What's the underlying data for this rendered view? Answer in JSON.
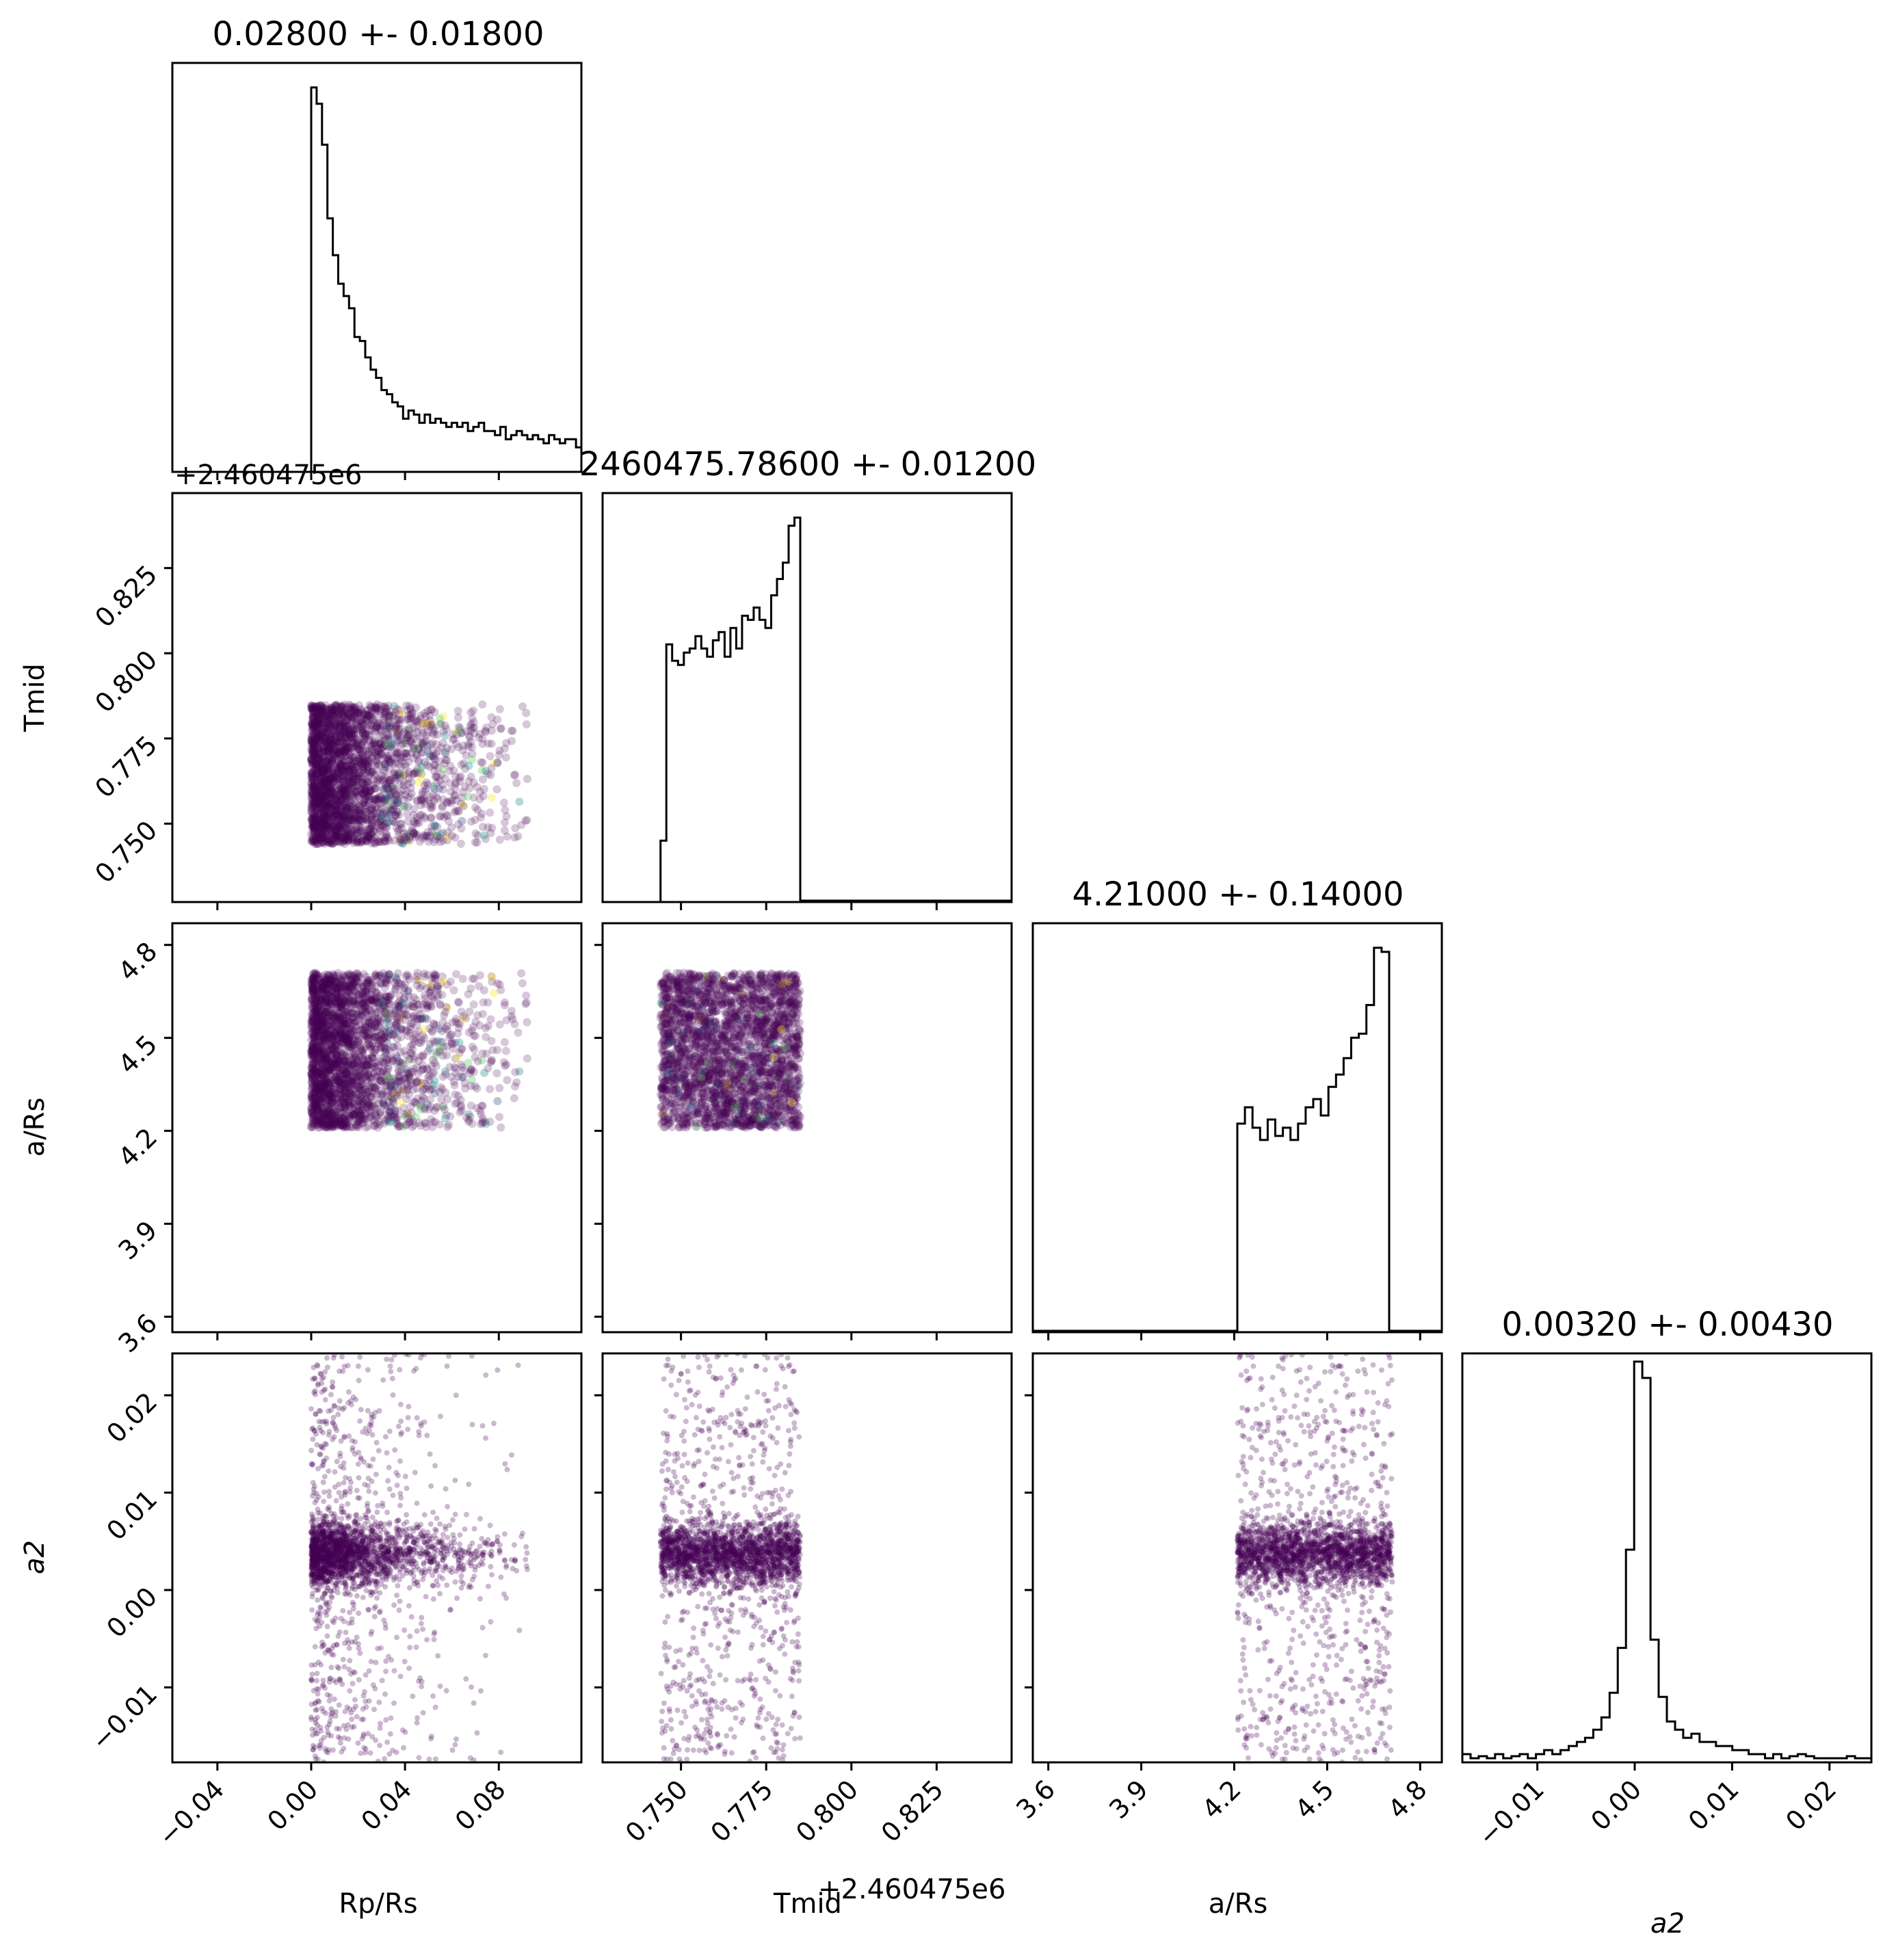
{
  "colors": {
    "background": "#ffffff",
    "frame": "#000000",
    "hist": "#000000",
    "points": "#440154",
    "points_extra": [
      "#3b528b",
      "#21918c",
      "#5ec962",
      "#fde725"
    ]
  },
  "chart_data": {
    "type": "corner",
    "parameters": [
      "Rp/Rs",
      "Tmid",
      "a/Rs",
      "a2"
    ],
    "titles": {
      "rp": "0.02800 +- 0.01800",
      "tmid": "2460475.78600 +- 0.01200",
      "ars": "4.21000 +- 0.14000",
      "a2": "0.00320 +- 0.00430"
    },
    "axis_labels": {
      "x_rp": "Rp/Rs",
      "x_tmid": "Tmid",
      "x_ars": "a/Rs",
      "x_a2": "a2",
      "y_tmid": "Tmid",
      "y_ars": "a/Rs",
      "y_a2": "a2"
    },
    "offsets": {
      "rp_tmid_panel": "+2.460475e6",
      "tmid_x": "+2.460475e6"
    },
    "ticks": {
      "rp": [
        "−0.04",
        "0.00",
        "0.04",
        "0.08"
      ],
      "tmid": [
        "0.750",
        "0.775",
        "0.800",
        "0.825"
      ],
      "ars": [
        "3.6",
        "3.9",
        "4.2",
        "4.5",
        "4.8"
      ],
      "a2": [
        "−0.01",
        "0.00",
        "0.01",
        "0.02"
      ]
    },
    "ranges": {
      "rp": [
        -0.0592,
        0.1152
      ],
      "tmid": [
        0.727,
        0.847
      ],
      "ars": [
        3.55,
        4.87
      ],
      "a2": [
        -0.0177,
        0.0243
      ]
    },
    "hist_rp": [
      0.94,
      0.9,
      0.8,
      0.62,
      0.53,
      0.46,
      0.43,
      0.4,
      0.33,
      0.32,
      0.28,
      0.25,
      0.23,
      0.2,
      0.19,
      0.17,
      0.16,
      0.13,
      0.15,
      0.14,
      0.12,
      0.14,
      0.12,
      0.13,
      0.12,
      0.11,
      0.12,
      0.11,
      0.12,
      0.1,
      0.11,
      0.12,
      0.1,
      0.1,
      0.09,
      0.11,
      0.08,
      0.09,
      0.1,
      0.09,
      0.08,
      0.09,
      0.08,
      0.07,
      0.09,
      0.08,
      0.07,
      0.08,
      0.08,
      0.06
    ],
    "hist_rp_start": 0.0,
    "hist_rp_end": 0.1152,
    "hist_tmid": [
      0.15,
      0.63,
      0.59,
      0.58,
      0.61,
      0.62,
      0.65,
      0.62,
      0.6,
      0.64,
      0.66,
      0.6,
      0.67,
      0.62,
      0.7,
      0.69,
      0.72,
      0.69,
      0.67,
      0.75,
      0.79,
      0.83,
      0.92,
      0.94
    ],
    "hist_tmid_start": 0.744,
    "hist_tmid_end": 0.785,
    "hist_ars": [
      0.51,
      0.55,
      0.5,
      0.47,
      0.52,
      0.48,
      0.5,
      0.47,
      0.51,
      0.55,
      0.57,
      0.53,
      0.6,
      0.63,
      0.67,
      0.72,
      0.73,
      0.8,
      0.94,
      0.93
    ],
    "hist_ars_start": 4.21,
    "hist_ars_end": 4.7,
    "hist_a2": [
      0.02,
      0.01,
      0.015,
      0.01,
      0.02,
      0.01,
      0.015,
      0.02,
      0.01,
      0.02,
      0.03,
      0.02,
      0.03,
      0.04,
      0.05,
      0.06,
      0.08,
      0.11,
      0.17,
      0.28,
      0.52,
      0.98,
      0.94,
      0.3,
      0.16,
      0.1,
      0.08,
      0.06,
      0.07,
      0.05,
      0.05,
      0.04,
      0.04,
      0.03,
      0.03,
      0.02,
      0.02,
      0.01,
      0.02,
      0.01,
      0.015,
      0.02,
      0.015,
      0.01,
      0.01,
      0.01,
      0.01,
      0.015,
      0.01,
      0.01
    ],
    "hist_a2_start": -0.0177,
    "hist_a2_end": 0.0243,
    "sample_ranges": {
      "rp": [
        0.0,
        0.1152
      ],
      "tmid": [
        0.744,
        0.785
      ],
      "ars": [
        4.21,
        4.71
      ],
      "a2_core": [
        0.0012,
        0.0062
      ],
      "a2_full": [
        -0.0177,
        0.0243
      ]
    }
  }
}
